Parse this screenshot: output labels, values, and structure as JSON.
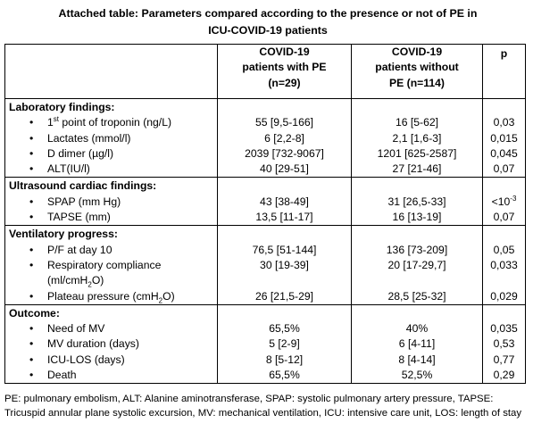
{
  "title": {
    "line1": "Attached table: Parameters compared according to the presence or not of PE in",
    "line2": "ICU-COVID-19 patients"
  },
  "header": {
    "col1": [
      "COVID-19",
      "patients with PE",
      "(n=29)"
    ],
    "col2": [
      "COVID-19",
      "patients without",
      "PE (n=114)"
    ],
    "col3": "p"
  },
  "sections": [
    {
      "title": "Laboratory findings:",
      "rows": [
        {
          "pre": "1",
          "sup": "st",
          "post": " point of troponin (ng/L)",
          "with_pe": "55 [9,5-166]",
          "without_pe": "16 [5-62]",
          "p": "0,03"
        },
        {
          "pre": "Lactates (mmol/l)",
          "with_pe": "6 [2,2-8]",
          "without_pe": "2,1 [1,6-3]",
          "p": "0,015"
        },
        {
          "pre": "D dimer (µg/l)",
          "with_pe": "2039 [732-9067]",
          "without_pe": "1201 [625-2587]",
          "p": "0,045"
        },
        {
          "pre": "ALT(IU/l)",
          "with_pe": "40 [29-51]",
          "without_pe": "27 [21-46]",
          "p": "0,07"
        }
      ]
    },
    {
      "title": "Ultrasound cardiac findings:",
      "rows": [
        {
          "pre": "SPAP (mm Hg)",
          "with_pe": "43 [38-49]",
          "without_pe": "31 [26,5-33]",
          "p_pre": "<10",
          "p_sup": "-3"
        },
        {
          "pre": "TAPSE (mm)",
          "with_pe": "13,5 [11-17]",
          "without_pe": "16 [13-19]",
          "p": "0,07"
        }
      ]
    },
    {
      "title": "Ventilatory progress:",
      "rows": [
        {
          "pre": "P/F at day 10",
          "with_pe": "76,5 [51-144]",
          "without_pe": "136 [73-209]",
          "p": "0,05"
        },
        {
          "pre": "Respiratory compliance",
          "line2_pre": "(ml/cmH",
          "line2_sub": "2",
          "line2_post": "O)",
          "with_pe": "30 [19-39]",
          "without_pe": "20 [17-29,7]",
          "p": "0,033"
        },
        {
          "pre": "Plateau pressure (cmH",
          "sub": "2",
          "post": "O)",
          "with_pe": "26 [21,5-29]",
          "without_pe": "28,5 [25-32]",
          "p": "0,029"
        }
      ]
    },
    {
      "title": "Outcome:",
      "rows": [
        {
          "pre": "Need of MV",
          "with_pe": "65,5%",
          "without_pe": "40%",
          "p": "0,035"
        },
        {
          "pre": "MV duration (days)",
          "with_pe": "5 [2-9]",
          "without_pe": "6 [4-11]",
          "p": "0,53"
        },
        {
          "pre": "ICU-LOS (days)",
          "with_pe": "8 [5-12]",
          "without_pe": "8 [4-14]",
          "p": "0,77"
        },
        {
          "pre": "Death",
          "with_pe": "65,5%",
          "without_pe": "52,5%",
          "p": "0,29"
        }
      ]
    }
  ],
  "bullet": "•",
  "footnote": "PE: pulmonary embolism, ALT: Alanine aminotransferase, SPAP: systolic pulmonary artery pressure, TAPSE: Tricuspid annular plane systolic excursion, MV: mechanical ventilation, ICU: intensive care unit, LOS: length of stay"
}
